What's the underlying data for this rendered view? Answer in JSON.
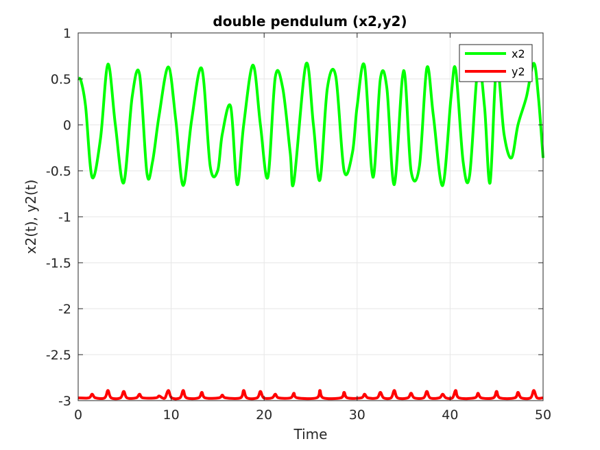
{
  "chart_data": {
    "type": "line",
    "title": "double pendulum (x2,y2)",
    "xlabel": "Time",
    "ylabel": "x2(t), y2(t)",
    "xlim": [
      0,
      50
    ],
    "ylim": [
      -3,
      1
    ],
    "xticks": [
      0,
      10,
      20,
      30,
      40,
      50
    ],
    "xtick_labels": [
      "0",
      "10",
      "20",
      "30",
      "40",
      "50"
    ],
    "yticks": [
      1,
      0.5,
      0,
      -0.5,
      -1,
      -1.5,
      -2,
      -2.5,
      -3
    ],
    "ytick_labels": [
      "1",
      "0.5",
      "0",
      "-0.5",
      "-1",
      "-1.5",
      "-2",
      "-2.5",
      "-3"
    ],
    "grid": true,
    "legend_position": "top-right",
    "series": [
      {
        "name": "x2",
        "color": "#00ff00",
        "x": [
          0,
          0.3,
          0.8,
          1.5,
          2.4,
          3.2,
          4.0,
          4.9,
          5.8,
          6.6,
          7.4,
          8.0,
          8.7,
          9.7,
          10.5,
          11.3,
          12.2,
          13.3,
          14.2,
          15.0,
          15.5,
          16.4,
          17.1,
          17.8,
          18.8,
          19.6,
          20.4,
          21.2,
          22.0,
          22.8,
          23.2,
          24.5,
          25.3,
          26.0,
          26.8,
          27.7,
          28.6,
          29.5,
          30.0,
          30.8,
          31.7,
          32.5,
          33.2,
          34.0,
          35.0,
          35.8,
          36.7,
          37.5,
          38.2,
          39.2,
          40.1,
          40.6,
          41.4,
          42.1,
          43.0,
          43.7,
          44.3,
          45.0,
          45.8,
          46.6,
          47.3,
          48.2,
          49.0,
          49.5,
          50.0
        ],
        "values": [
          0.5,
          0.48,
          0.2,
          -0.57,
          -0.15,
          0.66,
          0.0,
          -0.63,
          0.3,
          0.55,
          -0.53,
          -0.4,
          0.1,
          0.63,
          0.05,
          -0.66,
          0.05,
          0.61,
          -0.45,
          -0.5,
          -0.1,
          0.2,
          -0.65,
          0.0,
          0.65,
          0.0,
          -0.57,
          0.52,
          0.4,
          -0.3,
          -0.62,
          0.66,
          0.0,
          -0.6,
          0.4,
          0.53,
          -0.5,
          -0.3,
          0.2,
          0.64,
          -0.57,
          0.5,
          0.4,
          -0.65,
          0.59,
          -0.5,
          -0.45,
          0.62,
          0.1,
          -0.66,
          0.3,
          0.6,
          -0.4,
          -0.55,
          0.64,
          0.2,
          -0.63,
          0.65,
          -0.1,
          -0.36,
          0.0,
          0.3,
          0.67,
          0.3,
          -0.36
        ]
      },
      {
        "name": "y2",
        "color": "#ff0000",
        "baseline": -2.97,
        "x": [
          1.5,
          3.2,
          4.9,
          6.6,
          8.7,
          9.7,
          11.3,
          13.3,
          15.5,
          17.8,
          19.6,
          21.2,
          23.2,
          26.0,
          28.6,
          30.8,
          32.5,
          34.0,
          35.8,
          37.5,
          39.2,
          40.6,
          43.0,
          45.0,
          47.3,
          49.0
        ],
        "values": [
          -2.93,
          -2.89,
          -2.9,
          -2.93,
          -2.95,
          -2.89,
          -2.89,
          -2.91,
          -2.94,
          -2.89,
          -2.9,
          -2.93,
          -2.92,
          -2.89,
          -2.91,
          -2.93,
          -2.91,
          -2.89,
          -2.92,
          -2.9,
          -2.93,
          -2.89,
          -2.92,
          -2.9,
          -2.91,
          -2.89
        ]
      }
    ]
  }
}
